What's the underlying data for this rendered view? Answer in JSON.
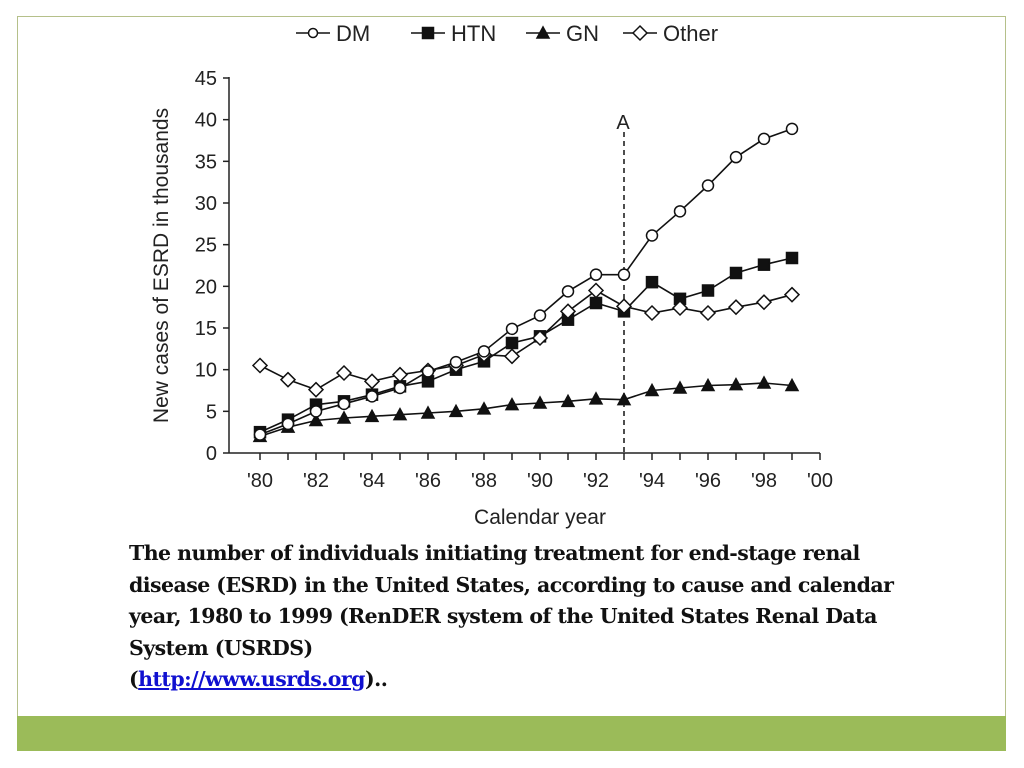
{
  "slide": {
    "caption_text": "The number of individuals initiating treatment for end-stage renal disease (ESRD) in the United States, according to cause and calendar year, 1980 to 1999 (RenDER system of the United States Renal Data System (USRDS)",
    "caption_open_paren": "(",
    "caption_link": "http://www.usrds.org",
    "caption_tail": ")..",
    "accent_color": "#9bbb59",
    "link_color": "#1010d0"
  },
  "chart_data": {
    "type": "line",
    "title": "",
    "xlabel": "Calendar year",
    "ylabel": "New cases of  ESRD in thousands",
    "xlim": [
      1980,
      2000
    ],
    "ylim": [
      0,
      45
    ],
    "x_ticks": [
      1980,
      1981,
      1982,
      1983,
      1984,
      1985,
      1986,
      1987,
      1988,
      1989,
      1990,
      1991,
      1992,
      1993,
      1994,
      1995,
      1996,
      1997,
      1998,
      1999,
      2000
    ],
    "x_tick_labels": [
      "'80",
      "'82",
      "'84",
      "'86",
      "'88",
      "'90",
      "'92",
      "'94",
      "'96",
      "'98",
      "'00"
    ],
    "x_tick_label_values": [
      1980,
      1982,
      1984,
      1986,
      1988,
      1990,
      1992,
      1994,
      1996,
      1998,
      2000
    ],
    "y_ticks": [
      0,
      5,
      10,
      15,
      20,
      25,
      30,
      35,
      40,
      45
    ],
    "y_tick_labels": [
      "0",
      "5",
      "10",
      "15",
      "20",
      "25",
      "30",
      "35",
      "40",
      "45"
    ],
    "grid": false,
    "legend_position": "top",
    "annotation": {
      "label": "A",
      "x": 1993,
      "style": "dashed-vertical-line"
    },
    "x": [
      1980,
      1981,
      1982,
      1983,
      1984,
      1985,
      1986,
      1987,
      1988,
      1989,
      1990,
      1991,
      1992,
      1993,
      1994,
      1995,
      1996,
      1997,
      1998,
      1999
    ],
    "series": [
      {
        "name": "DM",
        "marker": "open-circle",
        "values": [
          2.2,
          3.5,
          5.0,
          5.9,
          6.8,
          7.8,
          9.8,
          10.9,
          12.2,
          14.9,
          16.5,
          19.4,
          21.4,
          21.4,
          26.1,
          29.0,
          32.1,
          35.5,
          37.7,
          38.9
        ]
      },
      {
        "name": "HTN",
        "marker": "filled-square",
        "values": [
          2.5,
          4.0,
          5.8,
          6.2,
          7.0,
          8.0,
          8.6,
          10.0,
          11.0,
          13.2,
          14.0,
          16.0,
          18.0,
          17.0,
          20.5,
          18.5,
          19.5,
          21.6,
          22.6,
          23.4
        ]
      },
      {
        "name": "GN",
        "marker": "filled-triangle",
        "values": [
          2.0,
          3.1,
          3.9,
          4.2,
          4.4,
          4.6,
          4.8,
          5.0,
          5.3,
          5.8,
          6.0,
          6.2,
          6.5,
          6.4,
          7.5,
          7.8,
          8.1,
          8.2,
          8.4,
          8.1
        ]
      },
      {
        "name": "Other",
        "marker": "open-diamond",
        "values": [
          10.5,
          8.8,
          7.6,
          9.6,
          8.6,
          9.4,
          9.9,
          10.5,
          11.8,
          11.6,
          13.8,
          17.0,
          19.5,
          17.6,
          16.8,
          17.4,
          16.8,
          17.5,
          18.1,
          19.0
        ]
      }
    ]
  }
}
